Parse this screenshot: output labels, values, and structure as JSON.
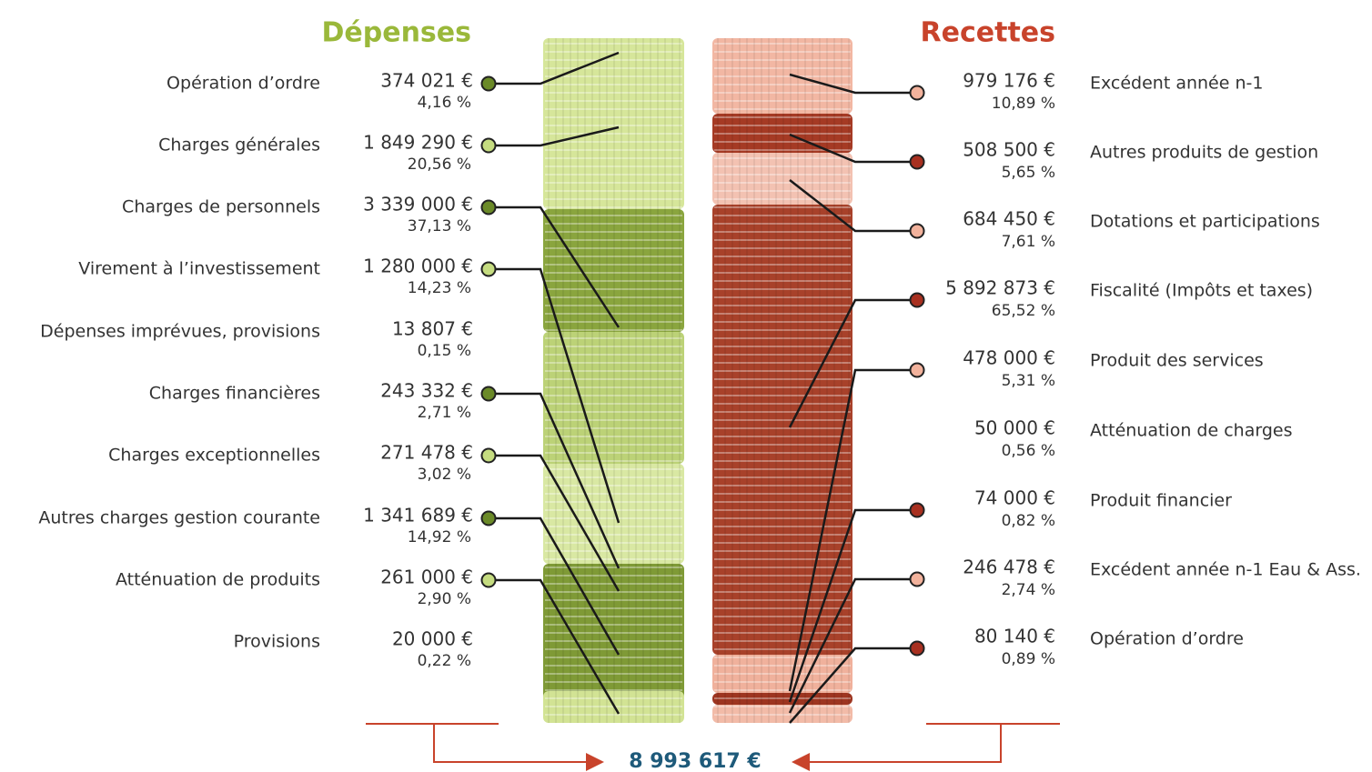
{
  "depenses": {
    "title": "Dépenses",
    "items": [
      {
        "label": "Opération d’ordre",
        "amount": "374 021 €",
        "percent": "4,16 %"
      },
      {
        "label": "Charges générales",
        "amount": "1 849 290 €",
        "percent": "20,56 %"
      },
      {
        "label": "Charges de personnels",
        "amount": "3 339 000 €",
        "percent": "37,13 %"
      },
      {
        "label": "Virement à l’investissement",
        "amount": "1 280 000 €",
        "percent": "14,23 %"
      },
      {
        "label": "Dépenses imprévues, provisions",
        "amount": "13 807 €",
        "percent": "0,15 %"
      },
      {
        "label": "Charges financières",
        "amount": "243 332 €",
        "percent": "2,71 %"
      },
      {
        "label": "Charges exceptionnelles",
        "amount": "271 478 €",
        "percent": "3,02 %"
      },
      {
        "label": "Autres charges gestion courante",
        "amount": "1 341 689 €",
        "percent": "14,92 %"
      },
      {
        "label": "Atténuation de produits",
        "amount": "261 000 €",
        "percent": "2,90 %"
      },
      {
        "label": "Provisions",
        "amount": "20 000 €",
        "percent": "0,22 %"
      }
    ]
  },
  "recettes": {
    "title": "Recettes",
    "items": [
      {
        "label": "Excédent année n-1",
        "amount": "979 176 €",
        "percent": "10,89 %"
      },
      {
        "label": "Autres produits de gestion",
        "amount": "508 500 €",
        "percent": "5,65 %"
      },
      {
        "label": "Dotations et participations",
        "amount": "684 450 €",
        "percent": "7,61 %"
      },
      {
        "label": "Fiscalité (Impôts et taxes)",
        "amount": "5 892 873 €",
        "percent": "65,52 %"
      },
      {
        "label": "Produit des services",
        "amount": "478 000 €",
        "percent": "5,31 %"
      },
      {
        "label": "Atténuation de charges",
        "amount": "50 000 €",
        "percent": "0,56 %"
      },
      {
        "label": "Produit financier",
        "amount": "74 000 €",
        "percent": "0,82 %"
      },
      {
        "label": "Excédent année n-1 Eau & Ass.",
        "amount": "246 478 €",
        "percent": "2,74 %"
      },
      {
        "label": "Opération d’ordre",
        "amount": "80 140 €",
        "percent": "0,89 %"
      }
    ]
  },
  "total": "8 993 617 €"
}
